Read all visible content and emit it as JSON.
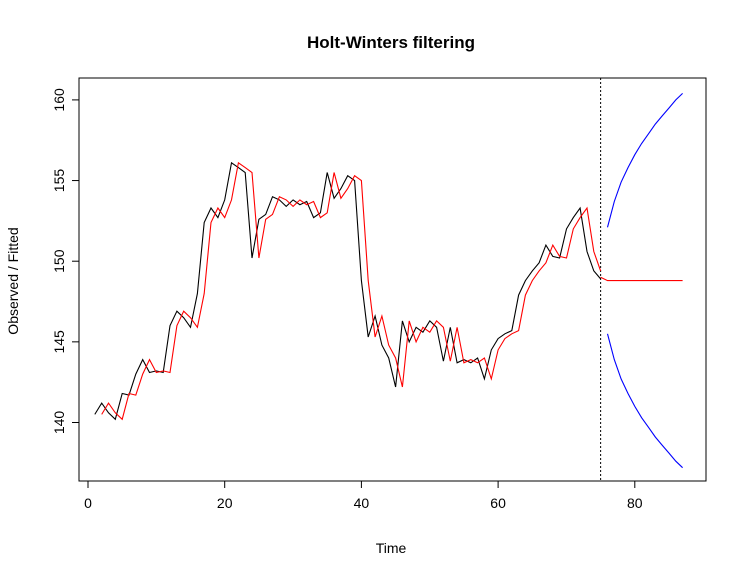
{
  "chart_data": {
    "type": "line",
    "title": "Holt-Winters filtering",
    "xlabel": "Time",
    "ylabel": "Observed / Fitted",
    "xlim": [
      0,
      90
    ],
    "ylim": [
      137.5,
      161
    ],
    "xticks": [
      0,
      20,
      40,
      60,
      80
    ],
    "yticks": [
      140,
      145,
      150,
      155,
      160
    ],
    "forecast_start": 75,
    "grid": false,
    "series": [
      {
        "role": "observed",
        "color": "#000000",
        "x": [
          1,
          2,
          3,
          4,
          5,
          6,
          7,
          8,
          9,
          10,
          11,
          12,
          13,
          14,
          15,
          16,
          17,
          18,
          19,
          20,
          21,
          22,
          23,
          24,
          25,
          26,
          27,
          28,
          29,
          30,
          31,
          32,
          33,
          34,
          35,
          36,
          37,
          38,
          39,
          40,
          41,
          42,
          43,
          44,
          45,
          46,
          47,
          48,
          49,
          50,
          51,
          52,
          53,
          54,
          55,
          56,
          57,
          58,
          59,
          60,
          61,
          62,
          63,
          64,
          65,
          66,
          67,
          68,
          69,
          70,
          71,
          72,
          73,
          74,
          75
        ],
        "values": [
          140.5,
          141.2,
          140.6,
          140.2,
          141.8,
          141.7,
          143.0,
          143.9,
          143.1,
          143.2,
          143.1,
          146.0,
          146.9,
          146.5,
          145.9,
          148.0,
          152.4,
          153.3,
          152.7,
          153.8,
          156.1,
          155.8,
          155.5,
          150.2,
          152.6,
          152.9,
          154.0,
          153.8,
          153.4,
          153.8,
          153.5,
          153.7,
          152.7,
          153.0,
          155.5,
          153.9,
          154.5,
          155.3,
          155.0,
          148.8,
          145.3,
          146.6,
          144.8,
          144.0,
          142.2,
          146.3,
          145.0,
          145.9,
          145.6,
          146.3,
          145.9,
          143.8,
          145.9,
          143.7,
          143.9,
          143.7,
          144.0,
          142.7,
          144.5,
          145.2,
          145.5,
          145.7,
          147.9,
          148.8,
          149.4,
          149.9,
          151.0,
          150.3,
          150.2,
          152.0,
          152.7,
          153.3,
          150.6,
          149.4,
          148.9
        ]
      },
      {
        "role": "fitted",
        "color": "#ff0000",
        "x": [
          2,
          3,
          4,
          5,
          6,
          7,
          8,
          9,
          10,
          11,
          12,
          13,
          14,
          15,
          16,
          17,
          18,
          19,
          20,
          21,
          22,
          23,
          24,
          25,
          26,
          27,
          28,
          29,
          30,
          31,
          32,
          33,
          34,
          35,
          36,
          37,
          38,
          39,
          40,
          41,
          42,
          43,
          44,
          45,
          46,
          47,
          48,
          49,
          50,
          51,
          52,
          53,
          54,
          55,
          56,
          57,
          58,
          59,
          60,
          61,
          62,
          63,
          64,
          65,
          66,
          67,
          68,
          69,
          70,
          71,
          72,
          73,
          74,
          75
        ],
        "values": [
          140.5,
          141.2,
          140.6,
          140.2,
          141.8,
          141.7,
          143.0,
          143.9,
          143.1,
          143.2,
          143.1,
          146.0,
          146.9,
          146.5,
          145.9,
          148.0,
          152.4,
          153.3,
          152.7,
          153.8,
          156.1,
          155.8,
          155.5,
          150.2,
          152.6,
          152.9,
          154.0,
          153.8,
          153.4,
          153.8,
          153.5,
          153.7,
          152.7,
          153.0,
          155.5,
          153.9,
          154.5,
          155.3,
          155.0,
          148.8,
          145.3,
          146.6,
          144.8,
          144.0,
          142.2,
          146.3,
          145.0,
          145.9,
          145.6,
          146.3,
          145.9,
          143.8,
          145.9,
          143.7,
          143.9,
          143.7,
          144.0,
          142.7,
          144.5,
          145.2,
          145.5,
          145.7,
          147.9,
          148.8,
          149.4,
          149.9,
          151.0,
          150.3,
          150.2,
          152.0,
          152.7,
          153.3,
          150.6,
          149.4
        ]
      },
      {
        "role": "forecast",
        "color": "#ff0000",
        "x": [
          75,
          76,
          77,
          78,
          79,
          80,
          81,
          82,
          83,
          84,
          85,
          86,
          87
        ],
        "values": [
          149.0,
          148.8,
          148.8,
          148.8,
          148.8,
          148.8,
          148.8,
          148.8,
          148.8,
          148.8,
          148.8,
          148.8,
          148.8
        ]
      },
      {
        "role": "upper-bound",
        "color": "#0000ff",
        "x": [
          76,
          77,
          78,
          79,
          80,
          81,
          82,
          83,
          84,
          85,
          86,
          87
        ],
        "values": [
          152.1,
          153.7,
          154.9,
          155.8,
          156.6,
          157.3,
          157.9,
          158.5,
          159.0,
          159.5,
          160.0,
          160.4
        ]
      },
      {
        "role": "lower-bound",
        "color": "#0000ff",
        "x": [
          76,
          77,
          78,
          79,
          80,
          81,
          82,
          83,
          84,
          85,
          86,
          87
        ],
        "values": [
          145.5,
          143.9,
          142.7,
          141.8,
          141.0,
          140.3,
          139.7,
          139.1,
          138.6,
          138.1,
          137.6,
          137.2
        ]
      }
    ]
  }
}
